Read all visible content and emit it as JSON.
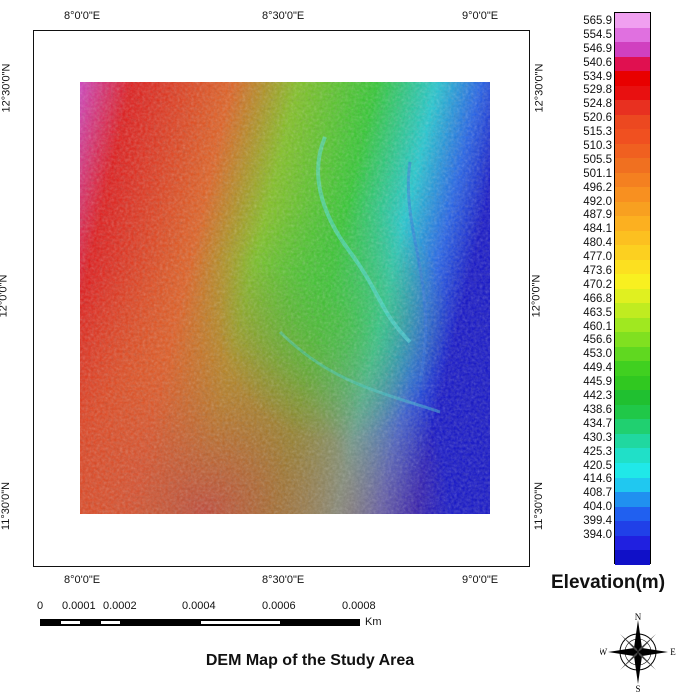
{
  "map": {
    "title": "DEM Map of the Study Area",
    "longitude_ticks": [
      "8°0'0\"E",
      "8°30'0\"E",
      "9°0'0\"E"
    ],
    "latitude_ticks": [
      "12°30'0\"N",
      "12°0'0\"N",
      "11°30'0\"N"
    ]
  },
  "legend": {
    "title": "Elevation(m)",
    "values": [
      "565.9",
      "554.5",
      "546.9",
      "540.6",
      "534.9",
      "529.8",
      "524.8",
      "520.6",
      "515.3",
      "510.3",
      "505.5",
      "501.1",
      "496.2",
      "492.0",
      "487.9",
      "484.1",
      "480.4",
      "477.0",
      "473.6",
      "470.2",
      "466.8",
      "463.5",
      "460.1",
      "456.6",
      "453.0",
      "449.4",
      "445.9",
      "442.3",
      "438.6",
      "434.7",
      "430.3",
      "425.3",
      "420.5",
      "414.6",
      "408.7",
      "404.0",
      "399.4",
      "394.0"
    ],
    "colors": [
      "#f0a0f0",
      "#e070e0",
      "#d040c0",
      "#e01050",
      "#e80000",
      "#e81010",
      "#e83020",
      "#ec4820",
      "#f05020",
      "#f06020",
      "#f07020",
      "#f48020",
      "#f89020",
      "#f8a020",
      "#fcb020",
      "#fcc020",
      "#fcd020",
      "#fce020",
      "#f8f020",
      "#e0f020",
      "#c0ec20",
      "#a0e820",
      "#80e020",
      "#60d820",
      "#40d020",
      "#30c820",
      "#20c030",
      "#20c848",
      "#20d070",
      "#20d8a0",
      "#20e0c8",
      "#20e8e8",
      "#20c8f0",
      "#2090f0",
      "#2060f0",
      "#2040e8",
      "#2020e0",
      "#1010c8"
    ]
  },
  "scalebar": {
    "labels": [
      "0",
      "0.0001",
      "0.0002",
      "0.0004",
      "0.0006",
      "0.0008"
    ],
    "unit": "Km"
  },
  "north_arrow": {
    "n": "N",
    "s": "S",
    "e": "E",
    "w": "W"
  }
}
